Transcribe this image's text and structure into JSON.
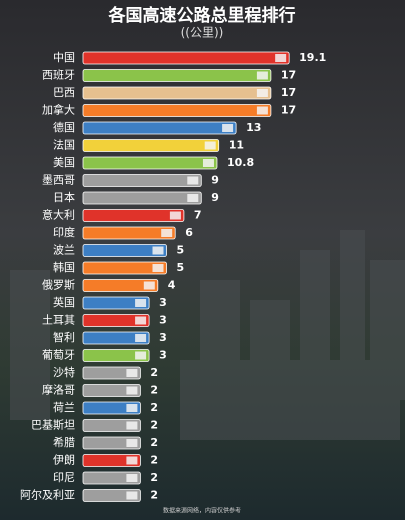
{
  "chart_data": {
    "type": "bar",
    "orientation": "horizontal",
    "title": "各国高速公路总里程排行",
    "subtitle": "((公里))",
    "source": "数据来源网络，内容仅供参考",
    "categories": [
      "中国",
      "西班牙",
      "巴西",
      "加拿大",
      "德国",
      "法国",
      "美国",
      "墨西哥",
      "日本",
      "意大利",
      "印度",
      "波兰",
      "韩国",
      "俄罗斯",
      "英国",
      "土耳其",
      "智利",
      "葡萄牙",
      "沙特",
      "摩洛哥",
      "荷兰",
      "巴基斯坦",
      "希腊",
      "伊朗",
      "印尼",
      "阿尔及利亚"
    ],
    "values": [
      19.1,
      17,
      17,
      17,
      13,
      11,
      10.8,
      9,
      9,
      7,
      6,
      5,
      5,
      4,
      3,
      3,
      3,
      3,
      2,
      2,
      2,
      2,
      2,
      2,
      2,
      2
    ],
    "colors": [
      "#e0332a",
      "#8bc34a",
      "#e6c08f",
      "#f57c28",
      "#3d7fc4",
      "#f2d13a",
      "#8bc34a",
      "#9e9e9e",
      "#9e9e9e",
      "#e0332a",
      "#f57c28",
      "#3d7fc4",
      "#f57c28",
      "#f57c28",
      "#3d7fc4",
      "#e0332a",
      "#3d7fc4",
      "#8bc34a",
      "#9e9e9e",
      "#9e9e9e",
      "#3d7fc4",
      "#9e9e9e",
      "#9e9e9e",
      "#e0332a",
      "#9e9e9e",
      "#9e9e9e"
    ]
  }
}
